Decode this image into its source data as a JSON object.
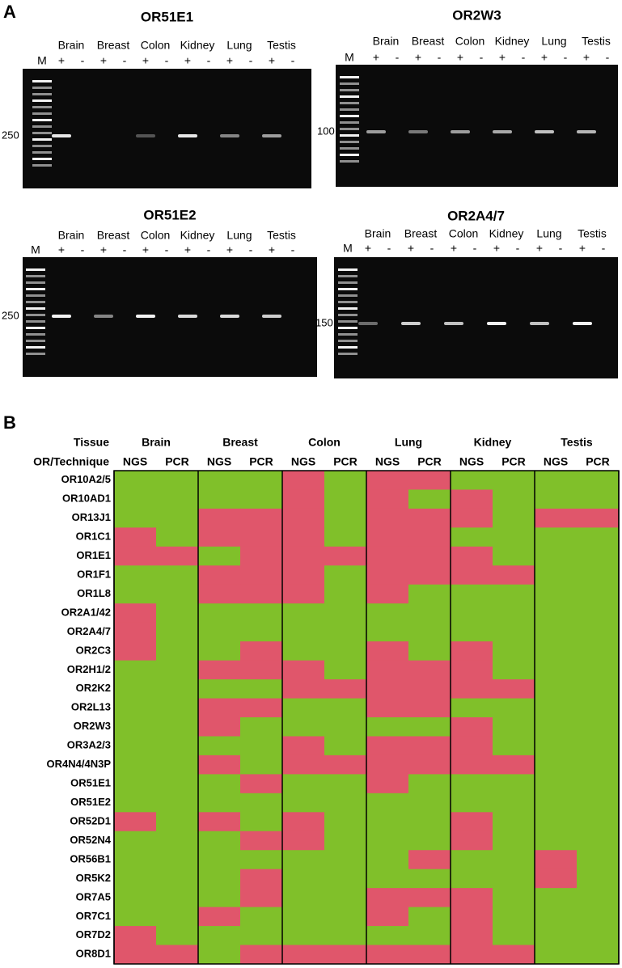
{
  "panel_a": {
    "label": "A",
    "gels": [
      {
        "title": "OR51E1",
        "tissues": [
          "Brain",
          "Breast",
          "Colon",
          "Kidney",
          "Lung",
          "Testis"
        ],
        "lanes": [
          "M",
          "+",
          "-",
          "+",
          "-",
          "+",
          "-",
          "+",
          "-",
          "+",
          "-",
          "+",
          "-"
        ],
        "marker": "250"
      },
      {
        "title": "OR2W3",
        "tissues": [
          "Brain",
          "Breast",
          "Colon",
          "Kidney",
          "Lung",
          "Testis"
        ],
        "lanes": [
          "M",
          "+",
          "-",
          "+",
          "-",
          "+",
          "-",
          "+",
          "-",
          "+",
          "-",
          "+",
          "-"
        ],
        "marker": "100"
      },
      {
        "title": "OR51E2",
        "tissues": [
          "Brain",
          "Breast",
          "Colon",
          "Kidney",
          "Lung",
          "Testis"
        ],
        "lanes": [
          "M",
          "+",
          "-",
          "+",
          "-",
          "+",
          "-",
          "+",
          "-",
          "+",
          "-",
          "+",
          "-"
        ],
        "marker": "250"
      },
      {
        "title": "OR2A4/7",
        "tissues": [
          "Brain",
          "Breast",
          "Colon",
          "Kidney",
          "Lung",
          "Testis"
        ],
        "lanes": [
          "M",
          "+",
          "-",
          "+",
          "-",
          "+",
          "-",
          "+",
          "-",
          "+",
          "-",
          "+",
          "-"
        ],
        "marker": "150"
      }
    ]
  },
  "panel_b": {
    "label": "B",
    "tissue_header": "Tissue",
    "technique_header": "OR/Technique",
    "tissues": [
      "Brain",
      "Breast",
      "Colon",
      "Lung",
      "Kidney",
      "Testis"
    ],
    "techniques": [
      "NGS",
      "PCR",
      "NGS",
      "PCR",
      "NGS",
      "PCR",
      "NGS",
      "PCR",
      "NGS",
      "PCR",
      "NGS",
      "PCR"
    ],
    "rows": [
      {
        "name": "OR10A2/5",
        "cells": [
          "G",
          "G",
          "G",
          "G",
          "R",
          "G",
          "R",
          "R",
          "G",
          "G",
          "G",
          "G"
        ]
      },
      {
        "name": "OR10AD1",
        "cells": [
          "G",
          "G",
          "G",
          "G",
          "R",
          "G",
          "R",
          "G",
          "R",
          "G",
          "G",
          "G"
        ]
      },
      {
        "name": "OR13J1",
        "cells": [
          "G",
          "G",
          "R",
          "R",
          "R",
          "G",
          "R",
          "R",
          "R",
          "G",
          "R",
          "R"
        ]
      },
      {
        "name": "OR1C1",
        "cells": [
          "R",
          "G",
          "R",
          "R",
          "R",
          "G",
          "R",
          "R",
          "G",
          "G",
          "G",
          "G"
        ]
      },
      {
        "name": "OR1E1",
        "cells": [
          "R",
          "R",
          "G",
          "R",
          "R",
          "R",
          "R",
          "R",
          "R",
          "G",
          "G",
          "G"
        ]
      },
      {
        "name": "OR1F1",
        "cells": [
          "G",
          "G",
          "R",
          "R",
          "R",
          "G",
          "R",
          "R",
          "R",
          "R",
          "G",
          "G"
        ]
      },
      {
        "name": "OR1L8",
        "cells": [
          "G",
          "G",
          "R",
          "R",
          "R",
          "G",
          "R",
          "G",
          "G",
          "G",
          "G",
          "G"
        ]
      },
      {
        "name": "OR2A1/42",
        "cells": [
          "R",
          "G",
          "G",
          "G",
          "G",
          "G",
          "G",
          "G",
          "G",
          "G",
          "G",
          "G"
        ]
      },
      {
        "name": "OR2A4/7",
        "cells": [
          "R",
          "G",
          "G",
          "G",
          "G",
          "G",
          "G",
          "G",
          "G",
          "G",
          "G",
          "G"
        ]
      },
      {
        "name": "OR2C3",
        "cells": [
          "R",
          "G",
          "G",
          "R",
          "G",
          "G",
          "R",
          "G",
          "R",
          "G",
          "G",
          "G"
        ]
      },
      {
        "name": "OR2H1/2",
        "cells": [
          "G",
          "G",
          "R",
          "R",
          "R",
          "G",
          "R",
          "R",
          "R",
          "G",
          "G",
          "G"
        ]
      },
      {
        "name": "OR2K2",
        "cells": [
          "G",
          "G",
          "G",
          "G",
          "R",
          "R",
          "R",
          "R",
          "R",
          "R",
          "G",
          "G"
        ]
      },
      {
        "name": "OR2L13",
        "cells": [
          "G",
          "G",
          "R",
          "R",
          "G",
          "G",
          "R",
          "R",
          "G",
          "G",
          "G",
          "G"
        ]
      },
      {
        "name": "OR2W3",
        "cells": [
          "G",
          "G",
          "R",
          "G",
          "G",
          "G",
          "G",
          "G",
          "R",
          "G",
          "G",
          "G"
        ]
      },
      {
        "name": "OR3A2/3",
        "cells": [
          "G",
          "G",
          "G",
          "G",
          "R",
          "G",
          "R",
          "R",
          "R",
          "G",
          "G",
          "G"
        ]
      },
      {
        "name": "OR4N4/4N3P",
        "cells": [
          "G",
          "G",
          "R",
          "G",
          "R",
          "R",
          "R",
          "R",
          "R",
          "R",
          "G",
          "G"
        ]
      },
      {
        "name": "OR51E1",
        "cells": [
          "G",
          "G",
          "G",
          "R",
          "G",
          "G",
          "R",
          "G",
          "G",
          "G",
          "G",
          "G"
        ]
      },
      {
        "name": "OR51E2",
        "cells": [
          "G",
          "G",
          "G",
          "G",
          "G",
          "G",
          "G",
          "G",
          "G",
          "G",
          "G",
          "G"
        ]
      },
      {
        "name": "OR52D1",
        "cells": [
          "R",
          "G",
          "R",
          "G",
          "R",
          "G",
          "G",
          "G",
          "R",
          "G",
          "G",
          "G"
        ]
      },
      {
        "name": "OR52N4",
        "cells": [
          "G",
          "G",
          "G",
          "R",
          "R",
          "G",
          "G",
          "G",
          "R",
          "G",
          "G",
          "G"
        ]
      },
      {
        "name": "OR56B1",
        "cells": [
          "G",
          "G",
          "G",
          "G",
          "G",
          "G",
          "G",
          "R",
          "G",
          "G",
          "R",
          "G"
        ]
      },
      {
        "name": "OR5K2",
        "cells": [
          "G",
          "G",
          "G",
          "R",
          "G",
          "G",
          "G",
          "G",
          "G",
          "G",
          "R",
          "G"
        ]
      },
      {
        "name": "OR7A5",
        "cells": [
          "G",
          "G",
          "G",
          "R",
          "G",
          "G",
          "R",
          "R",
          "R",
          "G",
          "G",
          "G"
        ]
      },
      {
        "name": "OR7C1",
        "cells": [
          "G",
          "G",
          "R",
          "G",
          "G",
          "G",
          "R",
          "G",
          "R",
          "G",
          "G",
          "G"
        ]
      },
      {
        "name": "OR7D2",
        "cells": [
          "R",
          "G",
          "G",
          "G",
          "G",
          "G",
          "G",
          "G",
          "R",
          "G",
          "G",
          "G"
        ]
      },
      {
        "name": "OR8D1",
        "cells": [
          "R",
          "R",
          "G",
          "R",
          "R",
          "R",
          "R",
          "R",
          "R",
          "R",
          "G",
          "G"
        ]
      }
    ],
    "colors": {
      "G": "#80c02a",
      "R": "#e0566b"
    }
  }
}
